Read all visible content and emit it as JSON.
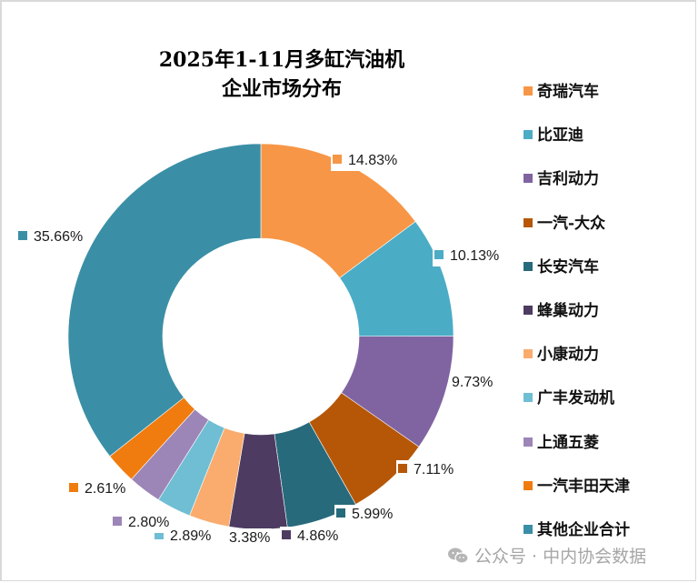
{
  "chart_data": {
    "type": "pie",
    "subtype": "donut",
    "title": "2025年1-11月多缸汽油机企业市场分布",
    "title_lines": [
      "2025年1-11月多缸汽油机",
      "企业市场分布"
    ],
    "categories": [
      "奇瑞汽车",
      "比亚迪",
      "吉利动力",
      "一汽-大众",
      "长安汽车",
      "蜂巢动力",
      "小康动力",
      "广丰发动机",
      "上通五菱",
      "一汽丰田天津",
      "其他企业合计"
    ],
    "values": [
      14.83,
      10.13,
      9.73,
      7.11,
      5.99,
      4.86,
      3.38,
      2.89,
      2.8,
      2.61,
      35.66
    ],
    "labels": [
      "14.83%",
      "10.13%",
      "9.73%",
      "7.11%",
      "5.99%",
      "4.86%",
      "3.38%",
      "2.89%",
      "2.80%",
      "2.61%",
      "35.66%"
    ],
    "colors": [
      "#F79646",
      "#4BACC6",
      "#8064A2",
      "#B65708",
      "#276A7C",
      "#4D3B62",
      "#F9AC6E",
      "#6FBED4",
      "#9C85B7",
      "#F07C0F",
      "#3A8FA6"
    ],
    "unit": "%",
    "legend_position": "right",
    "start_angle": "12 o'clock, clockwise"
  },
  "legend": {
    "items": [
      {
        "label": "奇瑞汽车",
        "color": "#F79646"
      },
      {
        "label": "比亚迪",
        "color": "#4BACC6"
      },
      {
        "label": "吉利动力",
        "color": "#8064A2"
      },
      {
        "label": "一汽-大众",
        "color": "#B65708"
      },
      {
        "label": "长安汽车",
        "color": "#276A7C"
      },
      {
        "label": "蜂巢动力",
        "color": "#4D3B62"
      },
      {
        "label": "小康动力",
        "color": "#F9AC6E"
      },
      {
        "label": "广丰发动机",
        "color": "#6FBED4"
      },
      {
        "label": "上通五菱",
        "color": "#9C85B7"
      },
      {
        "label": "一汽丰田天津",
        "color": "#F07C0F"
      },
      {
        "label": "其他企业合计",
        "color": "#3A8FA6"
      }
    ]
  },
  "watermark": {
    "text": "公众号 · 中内协会数据",
    "icon": "wechat-icon"
  }
}
